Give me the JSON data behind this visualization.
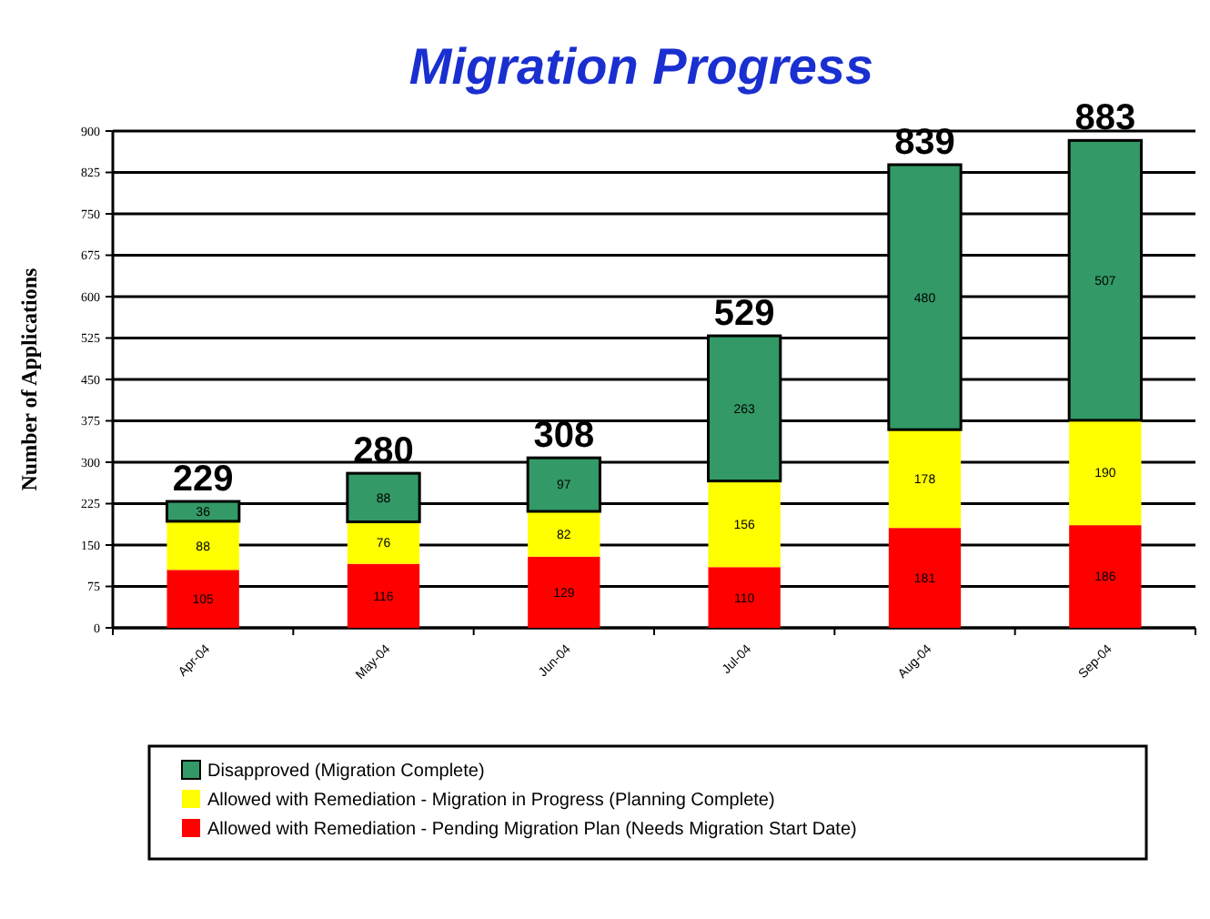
{
  "chart_data": {
    "type": "bar",
    "title": "Migration Progress",
    "ylabel": "Number of Applications",
    "categories": [
      "Apr-04",
      "May-04",
      "Jun-04",
      "Jul-04",
      "Aug-04",
      "Sep-04"
    ],
    "stacked": true,
    "series": [
      {
        "name": "Allowed with Remediation - Pending Migration Plan (Needs Migration Start Date)",
        "color": "#ff0000",
        "values": [
          105,
          116,
          129,
          110,
          181,
          186
        ]
      },
      {
        "name": "Allowed with Remediation - Migration in Progress (Planning Complete)",
        "color": "#ffff00",
        "values": [
          88,
          76,
          82,
          156,
          178,
          190
        ]
      },
      {
        "name": "Disapproved (Migration Complete)",
        "color": "#339966",
        "values": [
          36,
          88,
          97,
          263,
          480,
          507
        ]
      }
    ],
    "totals": [
      "229",
      "280",
      "308",
      "529",
      "839",
      "883"
    ],
    "data_labels": true,
    "ylim": [
      0,
      900
    ],
    "yticks": [
      0,
      75,
      150,
      225,
      300,
      375,
      450,
      525,
      600,
      675,
      750,
      825,
      900
    ],
    "grid": "y",
    "legend": "bottom"
  }
}
